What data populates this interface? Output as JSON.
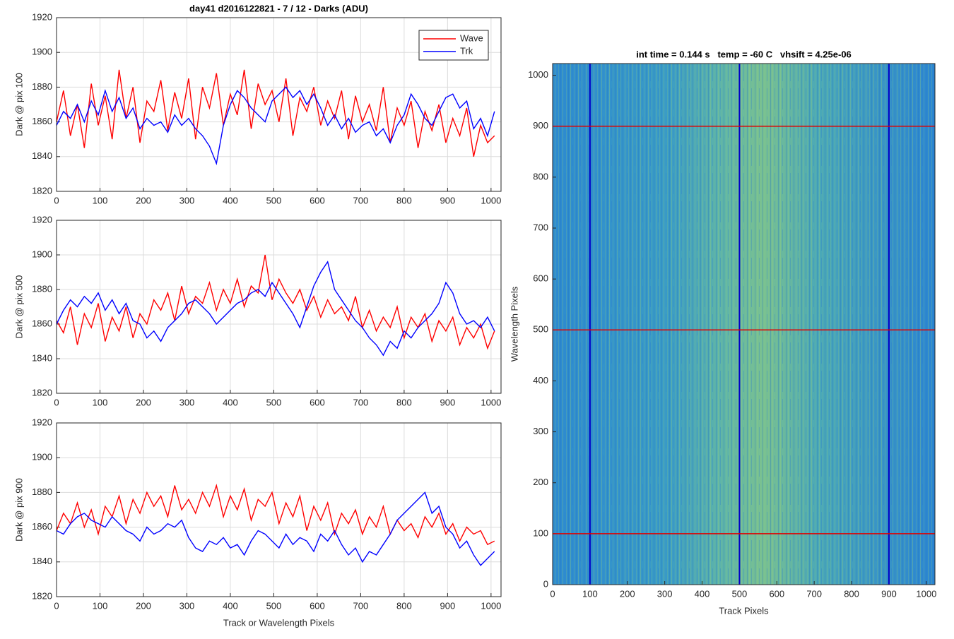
{
  "chart_data": [
    {
      "type": "line",
      "title": "day41 d2016122821 - 7 / 12 - Darks (ADU)",
      "ylabel": "Dark @ pix 100",
      "x": [
        0,
        16,
        32,
        48,
        64,
        80,
        96,
        112,
        128,
        144,
        160,
        176,
        192,
        208,
        224,
        240,
        256,
        272,
        288,
        304,
        320,
        336,
        352,
        368,
        384,
        400,
        416,
        432,
        448,
        464,
        480,
        496,
        512,
        528,
        544,
        560,
        576,
        592,
        608,
        624,
        640,
        656,
        672,
        688,
        704,
        720,
        736,
        752,
        768,
        784,
        800,
        816,
        832,
        848,
        864,
        880,
        896,
        912,
        928,
        944,
        960,
        976,
        992,
        1008
      ],
      "series": [
        {
          "name": "Wave",
          "color": "#ff0000",
          "values": [
            1860,
            1878,
            1852,
            1870,
            1845,
            1882,
            1858,
            1875,
            1850,
            1890,
            1862,
            1880,
            1848,
            1872,
            1866,
            1884,
            1855,
            1877,
            1862,
            1885,
            1850,
            1880,
            1868,
            1888,
            1858,
            1876,
            1864,
            1890,
            1856,
            1882,
            1870,
            1878,
            1860,
            1885,
            1852,
            1874,
            1866,
            1880,
            1858,
            1872,
            1862,
            1878,
            1850,
            1875,
            1860,
            1870,
            1855,
            1880,
            1848,
            1868,
            1858,
            1872,
            1845,
            1866,
            1855,
            1870,
            1848,
            1862,
            1852,
            1868,
            1840,
            1858,
            1848,
            1852
          ]
        },
        {
          "name": "Trk",
          "color": "#0000ff",
          "values": [
            1858,
            1866,
            1862,
            1870,
            1860,
            1872,
            1864,
            1878,
            1866,
            1874,
            1862,
            1868,
            1856,
            1862,
            1858,
            1860,
            1854,
            1864,
            1858,
            1862,
            1856,
            1852,
            1846,
            1836,
            1858,
            1870,
            1878,
            1874,
            1868,
            1864,
            1860,
            1872,
            1876,
            1880,
            1874,
            1878,
            1870,
            1876,
            1868,
            1858,
            1864,
            1856,
            1862,
            1854,
            1858,
            1860,
            1852,
            1856,
            1848,
            1858,
            1864,
            1876,
            1870,
            1862,
            1858,
            1866,
            1874,
            1876,
            1868,
            1872,
            1856,
            1862,
            1852,
            1866
          ]
        }
      ],
      "xlim": [
        0,
        1023
      ],
      "xticks": [
        0,
        100,
        200,
        300,
        400,
        500,
        600,
        700,
        800,
        900,
        1000
      ],
      "ylim": [
        1820,
        1920
      ],
      "yticks": [
        1820,
        1840,
        1860,
        1880,
        1900,
        1920
      ],
      "grid": true,
      "legend": "upper right"
    },
    {
      "type": "line",
      "ylabel": "Dark @ pix 500",
      "x": [
        0,
        16,
        32,
        48,
        64,
        80,
        96,
        112,
        128,
        144,
        160,
        176,
        192,
        208,
        224,
        240,
        256,
        272,
        288,
        304,
        320,
        336,
        352,
        368,
        384,
        400,
        416,
        432,
        448,
        464,
        480,
        496,
        512,
        528,
        544,
        560,
        576,
        592,
        608,
        624,
        640,
        656,
        672,
        688,
        704,
        720,
        736,
        752,
        768,
        784,
        800,
        816,
        832,
        848,
        864,
        880,
        896,
        912,
        928,
        944,
        960,
        976,
        992,
        1008
      ],
      "series": [
        {
          "name": "Wave",
          "color": "#ff0000",
          "values": [
            1862,
            1855,
            1870,
            1848,
            1866,
            1858,
            1872,
            1850,
            1864,
            1856,
            1870,
            1852,
            1866,
            1860,
            1874,
            1868,
            1878,
            1862,
            1882,
            1866,
            1876,
            1872,
            1884,
            1868,
            1880,
            1872,
            1886,
            1870,
            1882,
            1878,
            1900,
            1874,
            1886,
            1878,
            1872,
            1880,
            1868,
            1876,
            1864,
            1874,
            1866,
            1870,
            1862,
            1876,
            1858,
            1868,
            1856,
            1864,
            1858,
            1870,
            1852,
            1864,
            1858,
            1866,
            1850,
            1862,
            1856,
            1864,
            1848,
            1858,
            1852,
            1860,
            1846,
            1856
          ]
        },
        {
          "name": "Trk",
          "color": "#0000ff",
          "values": [
            1860,
            1868,
            1874,
            1870,
            1876,
            1872,
            1878,
            1868,
            1874,
            1866,
            1872,
            1862,
            1860,
            1852,
            1856,
            1850,
            1858,
            1862,
            1866,
            1872,
            1874,
            1870,
            1866,
            1860,
            1864,
            1868,
            1872,
            1874,
            1878,
            1880,
            1876,
            1884,
            1878,
            1872,
            1866,
            1858,
            1870,
            1882,
            1890,
            1896,
            1880,
            1874,
            1868,
            1862,
            1858,
            1852,
            1848,
            1842,
            1850,
            1846,
            1856,
            1852,
            1858,
            1862,
            1866,
            1872,
            1884,
            1878,
            1866,
            1860,
            1862,
            1858,
            1864,
            1856
          ]
        }
      ],
      "xlim": [
        0,
        1023
      ],
      "xticks": [
        0,
        100,
        200,
        300,
        400,
        500,
        600,
        700,
        800,
        900,
        1000
      ],
      "ylim": [
        1820,
        1920
      ],
      "yticks": [
        1820,
        1840,
        1860,
        1880,
        1900,
        1920
      ],
      "grid": true
    },
    {
      "type": "line",
      "ylabel": "Dark @ pix 900",
      "xlabel": "Track or Wavelength Pixels",
      "x": [
        0,
        16,
        32,
        48,
        64,
        80,
        96,
        112,
        128,
        144,
        160,
        176,
        192,
        208,
        224,
        240,
        256,
        272,
        288,
        304,
        320,
        336,
        352,
        368,
        384,
        400,
        416,
        432,
        448,
        464,
        480,
        496,
        512,
        528,
        544,
        560,
        576,
        592,
        608,
        624,
        640,
        656,
        672,
        688,
        704,
        720,
        736,
        752,
        768,
        784,
        800,
        816,
        832,
        848,
        864,
        880,
        896,
        912,
        928,
        944,
        960,
        976,
        992,
        1008
      ],
      "series": [
        {
          "name": "Wave",
          "color": "#ff0000",
          "values": [
            1858,
            1868,
            1862,
            1874,
            1860,
            1870,
            1856,
            1872,
            1866,
            1878,
            1862,
            1876,
            1868,
            1880,
            1872,
            1878,
            1866,
            1884,
            1870,
            1876,
            1868,
            1880,
            1872,
            1884,
            1866,
            1878,
            1870,
            1882,
            1864,
            1876,
            1872,
            1880,
            1862,
            1874,
            1866,
            1878,
            1858,
            1872,
            1864,
            1874,
            1856,
            1868,
            1862,
            1870,
            1856,
            1866,
            1860,
            1872,
            1856,
            1864,
            1858,
            1862,
            1854,
            1866,
            1860,
            1868,
            1856,
            1862,
            1852,
            1860,
            1856,
            1858,
            1850,
            1852
          ]
        },
        {
          "name": "Trk",
          "color": "#0000ff",
          "values": [
            1858,
            1856,
            1862,
            1866,
            1868,
            1864,
            1862,
            1860,
            1866,
            1862,
            1858,
            1856,
            1852,
            1860,
            1856,
            1858,
            1862,
            1860,
            1864,
            1854,
            1848,
            1846,
            1852,
            1850,
            1854,
            1848,
            1850,
            1844,
            1852,
            1858,
            1856,
            1852,
            1848,
            1856,
            1850,
            1854,
            1852,
            1846,
            1856,
            1852,
            1858,
            1850,
            1844,
            1848,
            1840,
            1846,
            1844,
            1850,
            1856,
            1864,
            1868,
            1872,
            1876,
            1880,
            1868,
            1872,
            1860,
            1856,
            1848,
            1852,
            1844,
            1838,
            1842,
            1846
          ]
        }
      ],
      "xlim": [
        0,
        1023
      ],
      "xticks": [
        0,
        100,
        200,
        300,
        400,
        500,
        600,
        700,
        800,
        900,
        1000
      ],
      "ylim": [
        1820,
        1920
      ],
      "yticks": [
        1820,
        1840,
        1860,
        1880,
        1900,
        1920
      ],
      "grid": true
    },
    {
      "type": "heatmap",
      "title": "int time = 0.144 s   temp = -60 C   vhsift = 4.25e-06",
      "xlabel": "Track Pixels",
      "ylabel": "Wavelength Pixels",
      "xlim": [
        0,
        1023
      ],
      "xticks": [
        0,
        100,
        200,
        300,
        400,
        500,
        600,
        700,
        800,
        900,
        1000
      ],
      "ylim": [
        0,
        1023
      ],
      "yticks": [
        0,
        100,
        200,
        300,
        400,
        500,
        600,
        700,
        800,
        900,
        1000
      ],
      "vlines": [
        100,
        500,
        900
      ],
      "vline_color": "#0000c8",
      "hlines": [
        100,
        500,
        900
      ],
      "hline_color": "#e00000"
    }
  ]
}
